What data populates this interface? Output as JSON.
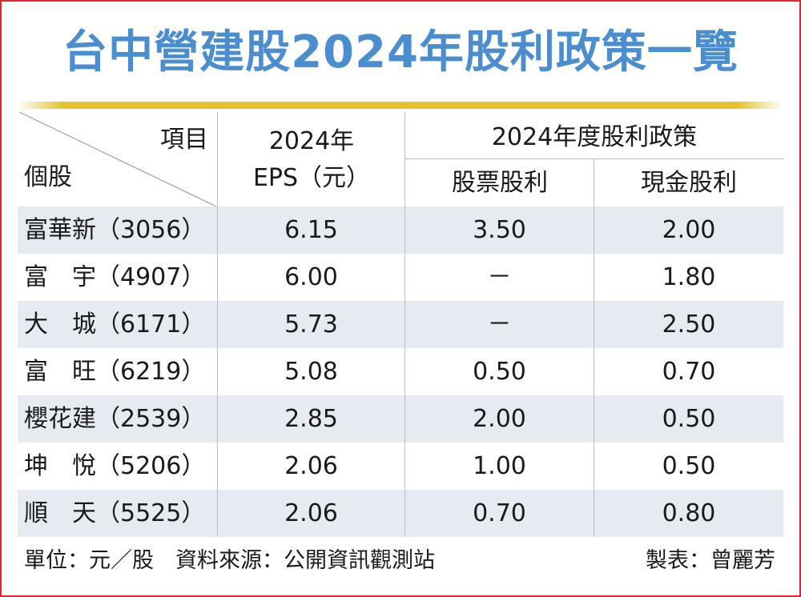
{
  "title": "台中營建股2024年股利政策一覽",
  "chart_data": {
    "type": "table",
    "header": {
      "item_label": "項目",
      "stock_label": "個股",
      "eps_line1": "2024年",
      "eps_line2": "EPS（元）",
      "policy_group": "2024年度股利政策",
      "stock_dividend": "股票股利",
      "cash_dividend": "現金股利"
    },
    "rows": [
      {
        "name": "富華新（3056）",
        "eps": "6.15",
        "stock_dividend": "3.50",
        "cash_dividend": "2.00"
      },
      {
        "name": "富　宇（4907）",
        "eps": "6.00",
        "stock_dividend": "－",
        "cash_dividend": "1.80"
      },
      {
        "name": "大　城（6171）",
        "eps": "5.73",
        "stock_dividend": "－",
        "cash_dividend": "2.50"
      },
      {
        "name": "富　旺（6219）",
        "eps": "5.08",
        "stock_dividend": "0.50",
        "cash_dividend": "0.70"
      },
      {
        "name": "櫻花建（2539）",
        "eps": "2.85",
        "stock_dividend": "2.00",
        "cash_dividend": "0.50"
      },
      {
        "name": "坤　悅（5206）",
        "eps": "2.06",
        "stock_dividend": "1.00",
        "cash_dividend": "0.50"
      },
      {
        "name": "順　天（5525）",
        "eps": "2.06",
        "stock_dividend": "0.70",
        "cash_dividend": "0.80"
      }
    ]
  },
  "footer": {
    "unit_source": "單位：元／股　資料來源：公開資訊觀測站",
    "author": "製表：曾麗芳"
  },
  "colors": {
    "title": "#4b8ed0",
    "frame": "#e8232a",
    "row_band": "#e6ebf2",
    "gold_rule": "#e5c22a"
  }
}
